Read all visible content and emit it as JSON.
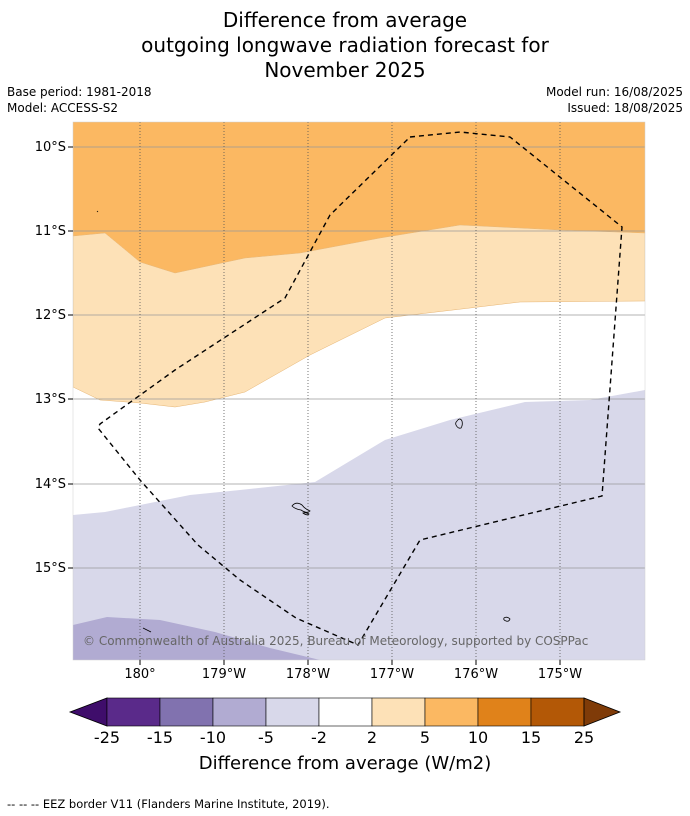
{
  "title": {
    "line1": "Difference from average",
    "line2": "outgoing longwave radiation forecast for",
    "line3": "November 2025"
  },
  "meta_left": {
    "base_period": "Base period: 1981-2018",
    "model": "Model: ACCESS-S2"
  },
  "meta_right": {
    "model_run": "Model run: 16/08/2025",
    "issued": "Issued: 18/08/2025"
  },
  "map": {
    "y_ticks": [
      "10°S",
      "11°S",
      "12°S",
      "13°S",
      "14°S",
      "15°S"
    ],
    "x_ticks": [
      "180°",
      "179°W",
      "178°W",
      "177°W",
      "176°W",
      "175°W"
    ],
    "copyright": "© Commonwealth of Australia 2025, Bureau of Meteorology, supported by COSPPac",
    "colors": {
      "orange_5_10": "#fbb862",
      "orange_2_5": "#fde1b7",
      "neutral": "#ffffff",
      "purple_m5_m2": "#d8d8ea",
      "purple_m10_m5": "#b1abd2",
      "eez_border": "#000000"
    }
  },
  "colorbar": {
    "ticks": [
      "-25",
      "-15",
      "-10",
      "-5",
      "-2",
      "2",
      "5",
      "10",
      "15",
      "25"
    ],
    "colors": [
      "#3f0d6b",
      "#5a2a8a",
      "#8172af",
      "#b1abd2",
      "#d8d8ea",
      "#ffffff",
      "#fde1b7",
      "#fbb862",
      "#e0821a",
      "#b35806",
      "#7f3b08"
    ],
    "title": "Difference from average (W/m2)"
  },
  "footnote": "--  --  -- EEZ border V11 (Flanders Marine Institute, 2019)."
}
